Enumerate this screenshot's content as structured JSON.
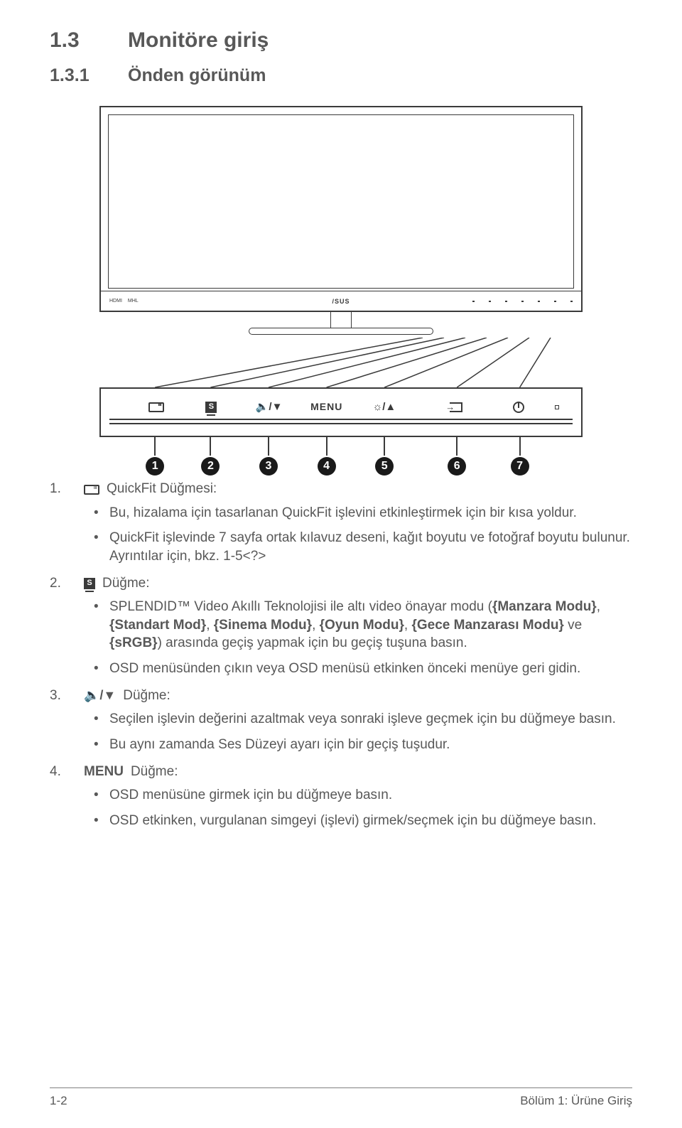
{
  "section": {
    "number": "1.3",
    "title": "Monitöre giriş"
  },
  "subsection": {
    "number": "1.3.1",
    "title": "Önden görünüm"
  },
  "diagram": {
    "bezel_left_labels": [
      "HDMI",
      "MHL"
    ],
    "bezel_logo": "/SUS",
    "button_positions_pct": [
      11.5,
      23,
      35,
      47,
      59,
      74,
      87
    ],
    "buttons": [
      {
        "kind": "quickfit"
      },
      {
        "kind": "s"
      },
      {
        "kind": "voldown",
        "glyph": "🔈/▼"
      },
      {
        "kind": "text",
        "label": "MENU"
      },
      {
        "kind": "brightup",
        "glyph": "☼/▲"
      },
      {
        "kind": "input"
      },
      {
        "kind": "power"
      }
    ],
    "indicator_square_pct": 95,
    "circle_bg": "#1a1a1a",
    "circle_fg": "#ffffff",
    "line_color": "#3a3a3a"
  },
  "list": [
    {
      "num": "1.",
      "icon": "quickfit",
      "head": "QuickFit Düğmesi:",
      "bullets": [
        {
          "text": "Bu, hizalama için tasarlanan QuickFit işlevini etkinleştirmek için bir kısa yoldur."
        },
        {
          "text": "QuickFit işlevinde 7 sayfa ortak kılavuz deseni, kağıt boyutu ve fotoğraf boyutu bulunur. Ayrıntılar için, bkz. 1-5<?>"
        }
      ]
    },
    {
      "num": "2.",
      "icon": "s",
      "head": "Düğme:",
      "bullets": [
        {
          "html": "SPLENDID™ Video Akıllı Teknolojisi ile altı video önayar modu (<b>{Manzara Modu}</b>, <b>{Standart Mod}</b>, <b>{Sinema Modu}</b>, <b>{Oyun Modu}</b>, <b>{Gece Manzarası Modu}</b> ve <b>{sRGB}</b>) arasında geçiş yapmak için bu geçiş tuşuna basın."
        },
        {
          "text": "OSD menüsünden çıkın veya OSD menüsü etkinken önceki menüye geri gidin."
        }
      ]
    },
    {
      "num": "3.",
      "icon": "voldown",
      "icon_glyph": "🔈/▼",
      "head": "Düğme:",
      "bullets": [
        {
          "text": "Seçilen işlevin değerini azaltmak veya sonraki işleve geçmek için bu düğmeye basın."
        },
        {
          "text": "Bu aynı zamanda Ses Düzeyi ayarı için bir geçiş tuşudur."
        }
      ]
    },
    {
      "num": "4.",
      "head_bold": "MENU",
      "head": "Düğme:",
      "bullets": [
        {
          "text": "OSD menüsüne girmek için bu düğmeye basın."
        },
        {
          "text": "OSD etkinken, vurgulanan simgeyi (işlevi) girmek/seçmek için bu düğmeye basın."
        }
      ]
    }
  ],
  "footer": {
    "left": "1-2",
    "right": "Bölüm 1: Ürüne Giriş"
  },
  "colors": {
    "text": "#585858",
    "stroke": "#3a3a3a",
    "bg": "#ffffff"
  }
}
